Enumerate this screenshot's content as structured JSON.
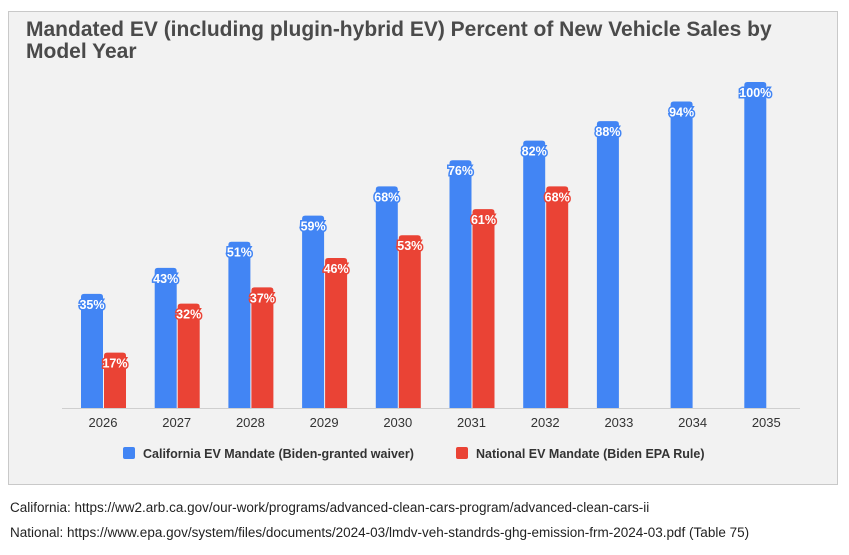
{
  "chart_data": {
    "type": "bar",
    "title": "Mandated EV (including plugin-hybrid EV) Percent of New Vehicle Sales by Model Year",
    "categories": [
      "2026",
      "2027",
      "2028",
      "2029",
      "2030",
      "2031",
      "2032",
      "2033",
      "2034",
      "2035"
    ],
    "series": [
      {
        "name": "California EV Mandate (Biden-granted waiver)",
        "color": "#4285f4",
        "values": [
          35,
          43,
          51,
          59,
          68,
          76,
          82,
          88,
          94,
          100
        ],
        "labels": [
          "35%",
          "43%",
          "51%",
          "59%",
          "68%",
          "76%",
          "82%",
          "88%",
          "94%",
          "100%"
        ]
      },
      {
        "name": "National EV Mandate (Biden EPA Rule)",
        "color": "#ea4335",
        "values": [
          17,
          32,
          37,
          46,
          53,
          61,
          68,
          null,
          null,
          null
        ],
        "labels": [
          "17%",
          "32%",
          "37%",
          "46%",
          "53%",
          "61%",
          "68%",
          null,
          null,
          null
        ]
      }
    ],
    "ylim": [
      0,
      100
    ],
    "grid": false,
    "legend": "bottom",
    "background": "#f2f2f2"
  },
  "sources": {
    "california": "California: https://ww2.arb.ca.gov/our-work/programs/advanced-clean-cars-program/advanced-clean-cars-ii",
    "national": "National: https://www.epa.gov/system/files/documents/2024-03/lmdv-veh-standrds-ghg-emission-frm-2024-03.pdf (Table 75)"
  }
}
